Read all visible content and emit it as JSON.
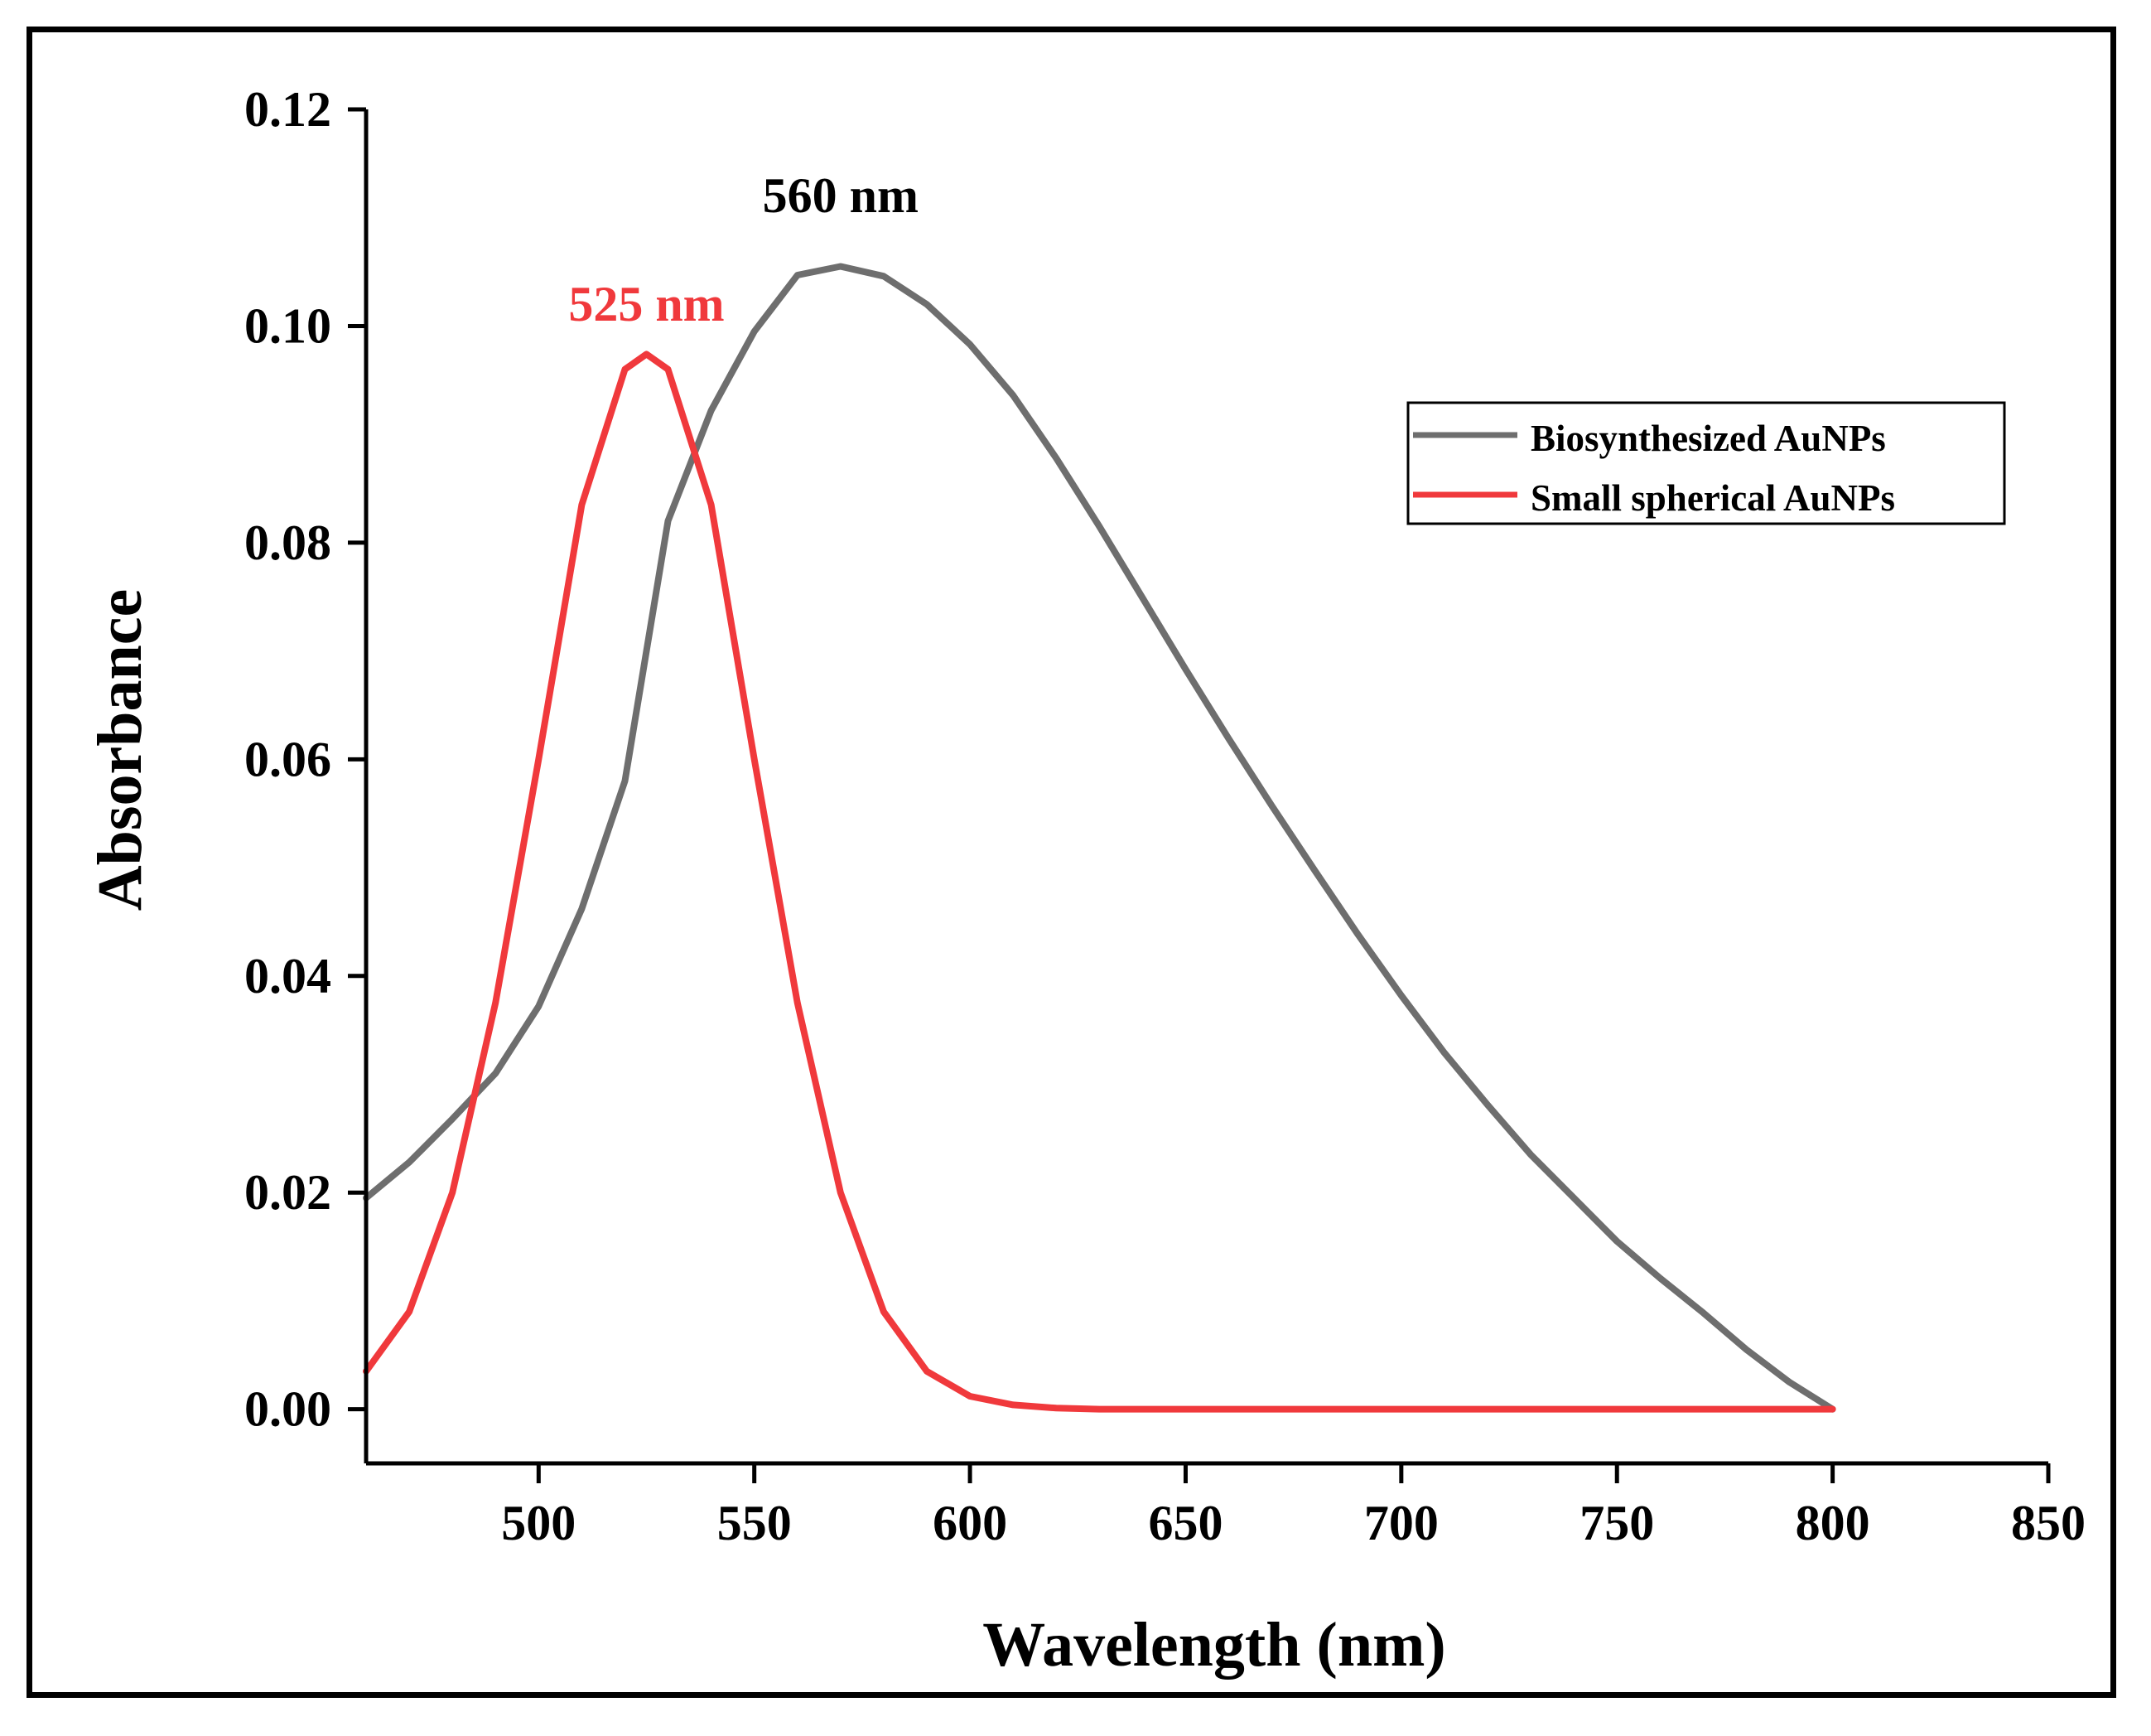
{
  "chart_data": {
    "type": "line",
    "title": "",
    "xlabel": "Wavelength (nm)",
    "ylabel": "Absorbance",
    "xlim": [
      460,
      850
    ],
    "ylim": [
      -0.005,
      0.12
    ],
    "xticks": [
      500,
      550,
      600,
      650,
      700,
      750,
      800,
      850
    ],
    "yticks": [
      0.0,
      0.02,
      0.04,
      0.06,
      0.08,
      0.1,
      0.12
    ],
    "xtick_labels": [
      "500",
      "550",
      "600",
      "650",
      "700",
      "750",
      "800",
      "850"
    ],
    "ytick_labels": [
      "0.00",
      "0.02",
      "0.04",
      "0.06",
      "0.08",
      "0.10",
      "0.12"
    ],
    "legend_position": "top-right",
    "series": [
      {
        "name": "Biosynthesized AuNPs",
        "color": "#6e6e6e",
        "x": [
          460,
          470,
          480,
          490,
          500,
          510,
          520,
          530,
          540,
          550,
          560,
          570,
          580,
          590,
          600,
          610,
          620,
          630,
          640,
          650,
          660,
          670,
          680,
          690,
          700,
          710,
          720,
          730,
          740,
          750,
          760,
          770,
          780,
          790,
          800
        ],
        "values": [
          0.0195,
          0.0228,
          0.0268,
          0.031,
          0.0372,
          0.0462,
          0.058,
          0.082,
          0.0922,
          0.0995,
          0.1047,
          0.1055,
          0.1046,
          0.102,
          0.0983,
          0.0936,
          0.0878,
          0.0815,
          0.0749,
          0.0683,
          0.0619,
          0.0557,
          0.0497,
          0.0438,
          0.0382,
          0.0329,
          0.0281,
          0.0235,
          0.0195,
          0.0155,
          0.0121,
          0.0089,
          0.0055,
          0.0025,
          0.0
        ]
      },
      {
        "name": "Small spherical AuNPs",
        "color": "#f0393c",
        "x": [
          460,
          470,
          480,
          490,
          500,
          510,
          520,
          525,
          530,
          540,
          550,
          560,
          570,
          580,
          590,
          600,
          610,
          620,
          630,
          640,
          650,
          660,
          670,
          680,
          690,
          700,
          710,
          720,
          730,
          740,
          750,
          760,
          770,
          780,
          790,
          800
        ],
        "values": [
          0.0035,
          0.009,
          0.02,
          0.0375,
          0.06,
          0.0835,
          0.096,
          0.0974,
          0.096,
          0.0835,
          0.06,
          0.0375,
          0.02,
          0.009,
          0.0035,
          0.0012,
          0.0004,
          0.0001,
          0.0,
          0.0,
          0.0,
          0.0,
          0.0,
          0.0,
          0.0,
          0.0,
          0.0,
          0.0,
          0.0,
          0.0,
          0.0,
          0.0,
          0.0,
          0.0,
          0.0,
          0.0
        ]
      }
    ],
    "annotations": [
      {
        "text": "560 nm",
        "x": 570,
        "y": 0.1105,
        "color": "#000000"
      },
      {
        "text": "525 nm",
        "x": 525,
        "y": 0.1005,
        "color": "#f0393c"
      }
    ]
  }
}
